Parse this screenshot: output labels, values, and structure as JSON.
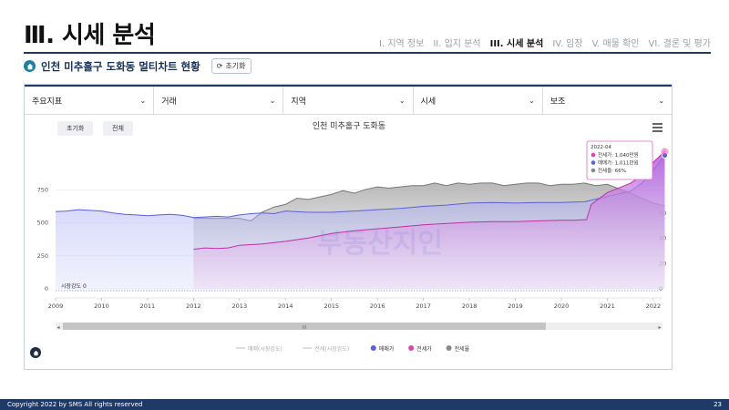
{
  "header": {
    "title": "Ⅲ. 시세 분석",
    "nav": [
      "I. 지역 정보",
      "II. 입지 분석",
      "III. 시세 분석",
      "IV. 임장",
      "V. 매물 확인",
      "VI. 결론 및 평가"
    ],
    "active_index": 2
  },
  "subtitle": "인천 미추홀구 도화동 멀티차트 현황",
  "reset_label": "초기화",
  "filters": [
    "주요지표",
    "거래",
    "지역",
    "시세",
    "보조"
  ],
  "chart_buttons": {
    "reset": "초기화",
    "all": "전체"
  },
  "watermark": "부동산지인",
  "scrollbar_label": "III",
  "tooltip": {
    "date": "2022-04",
    "rows": [
      {
        "label": "전세가: 1,040만원",
        "color": "#e040b8"
      },
      {
        "label": "매매가: 1,011만원",
        "color": "#5b5fe0"
      },
      {
        "label": "전세율: 66%",
        "color": "#8a8a8a"
      }
    ]
  },
  "footer": {
    "copyright": "Copyright 2022 by SMS All rights reserved",
    "page": "23"
  },
  "chart_data": {
    "type": "area",
    "title": "인천 미추홀구 도화동",
    "x_ticks": [
      "2009",
      "2010",
      "2011",
      "2012",
      "2013",
      "2014",
      "2015",
      "2016",
      "2017",
      "2018",
      "2019",
      "2020",
      "2021",
      "2022"
    ],
    "xlim": [
      2009.0,
      2022.2
    ],
    "ylim": [
      0,
      1050
    ],
    "y_ticks": [
      0,
      250,
      500,
      750
    ],
    "y2lim": [
      0,
      110
    ],
    "y2_ticks": [
      0,
      20,
      40,
      60
    ],
    "market_strength_label": "시장강도 0",
    "legend": [
      {
        "label": "매매(시장강도)",
        "color": "#c8c8c8",
        "kind": "line"
      },
      {
        "label": "전세(시장강도)",
        "color": "#c8c8c8",
        "kind": "line"
      },
      {
        "label": "매매가",
        "color": "#5b5fe0",
        "kind": "dot"
      },
      {
        "label": "전세가",
        "color": "#e040b8",
        "kind": "dot"
      },
      {
        "label": "전세율",
        "color": "#8a8a8a",
        "kind": "dot"
      }
    ],
    "series": [
      {
        "name": "매매가",
        "color": "#5b5fe0",
        "axis": "left",
        "x": [
          2009.0,
          2009.25,
          2009.5,
          2009.75,
          2010.0,
          2010.25,
          2010.5,
          2010.75,
          2011.0,
          2011.25,
          2011.5,
          2011.75,
          2012.0,
          2012.25,
          2012.5,
          2012.75,
          2013.0,
          2013.25,
          2013.5,
          2013.75,
          2014.0,
          2014.5,
          2015.0,
          2015.5,
          2016.0,
          2016.5,
          2017.0,
          2017.5,
          2018.0,
          2018.5,
          2019.0,
          2019.5,
          2020.0,
          2020.5,
          2021.0,
          2021.5,
          2021.75,
          2022.0,
          2022.25
        ],
        "values": [
          585,
          590,
          600,
          595,
          590,
          575,
          565,
          560,
          555,
          560,
          565,
          558,
          540,
          545,
          550,
          545,
          560,
          570,
          575,
          570,
          590,
          580,
          580,
          590,
          600,
          610,
          625,
          635,
          650,
          655,
          650,
          655,
          655,
          660,
          700,
          740,
          800,
          900,
          1011
        ]
      },
      {
        "name": "전세가",
        "color": "#e040b8",
        "axis": "left",
        "x": [
          2012.0,
          2012.25,
          2012.5,
          2012.75,
          2013.0,
          2013.25,
          2013.5,
          2013.75,
          2014.0,
          2014.5,
          2015.0,
          2015.5,
          2016.0,
          2016.5,
          2017.0,
          2017.5,
          2018.0,
          2018.5,
          2019.0,
          2019.5,
          2020.0,
          2020.3,
          2020.55,
          2020.65,
          2021.0,
          2021.5,
          2021.75,
          2022.0,
          2022.25
        ],
        "values": [
          300,
          310,
          305,
          310,
          330,
          335,
          340,
          350,
          360,
          385,
          420,
          440,
          455,
          470,
          485,
          495,
          505,
          510,
          510,
          515,
          520,
          520,
          525,
          640,
          730,
          800,
          860,
          960,
          1040
        ]
      },
      {
        "name": "전세율",
        "color": "#8a8a8a",
        "axis": "right",
        "x": [
          2012.0,
          2012.5,
          2013.0,
          2013.25,
          2013.5,
          2013.75,
          2014.0,
          2014.25,
          2014.5,
          2014.75,
          2015.0,
          2015.25,
          2015.5,
          2015.75,
          2016.0,
          2016.25,
          2016.5,
          2016.75,
          2017.0,
          2017.25,
          2017.5,
          2017.75,
          2018.0,
          2018.25,
          2018.5,
          2018.75,
          2019.0,
          2019.25,
          2019.5,
          2019.75,
          2020.0,
          2020.25,
          2020.5,
          2020.75,
          2021.0,
          2021.5,
          2021.75,
          2022.0,
          2022.25
        ],
        "values": [
          56,
          56,
          56,
          54,
          61,
          65,
          67,
          72,
          71,
          73,
          75,
          78,
          76,
          79,
          81,
          80,
          81,
          82,
          82,
          84,
          82,
          84,
          83,
          84,
          84,
          82,
          83,
          84,
          84,
          82,
          83,
          83,
          84,
          82,
          83,
          76,
          72,
          68,
          66
        ]
      }
    ]
  }
}
